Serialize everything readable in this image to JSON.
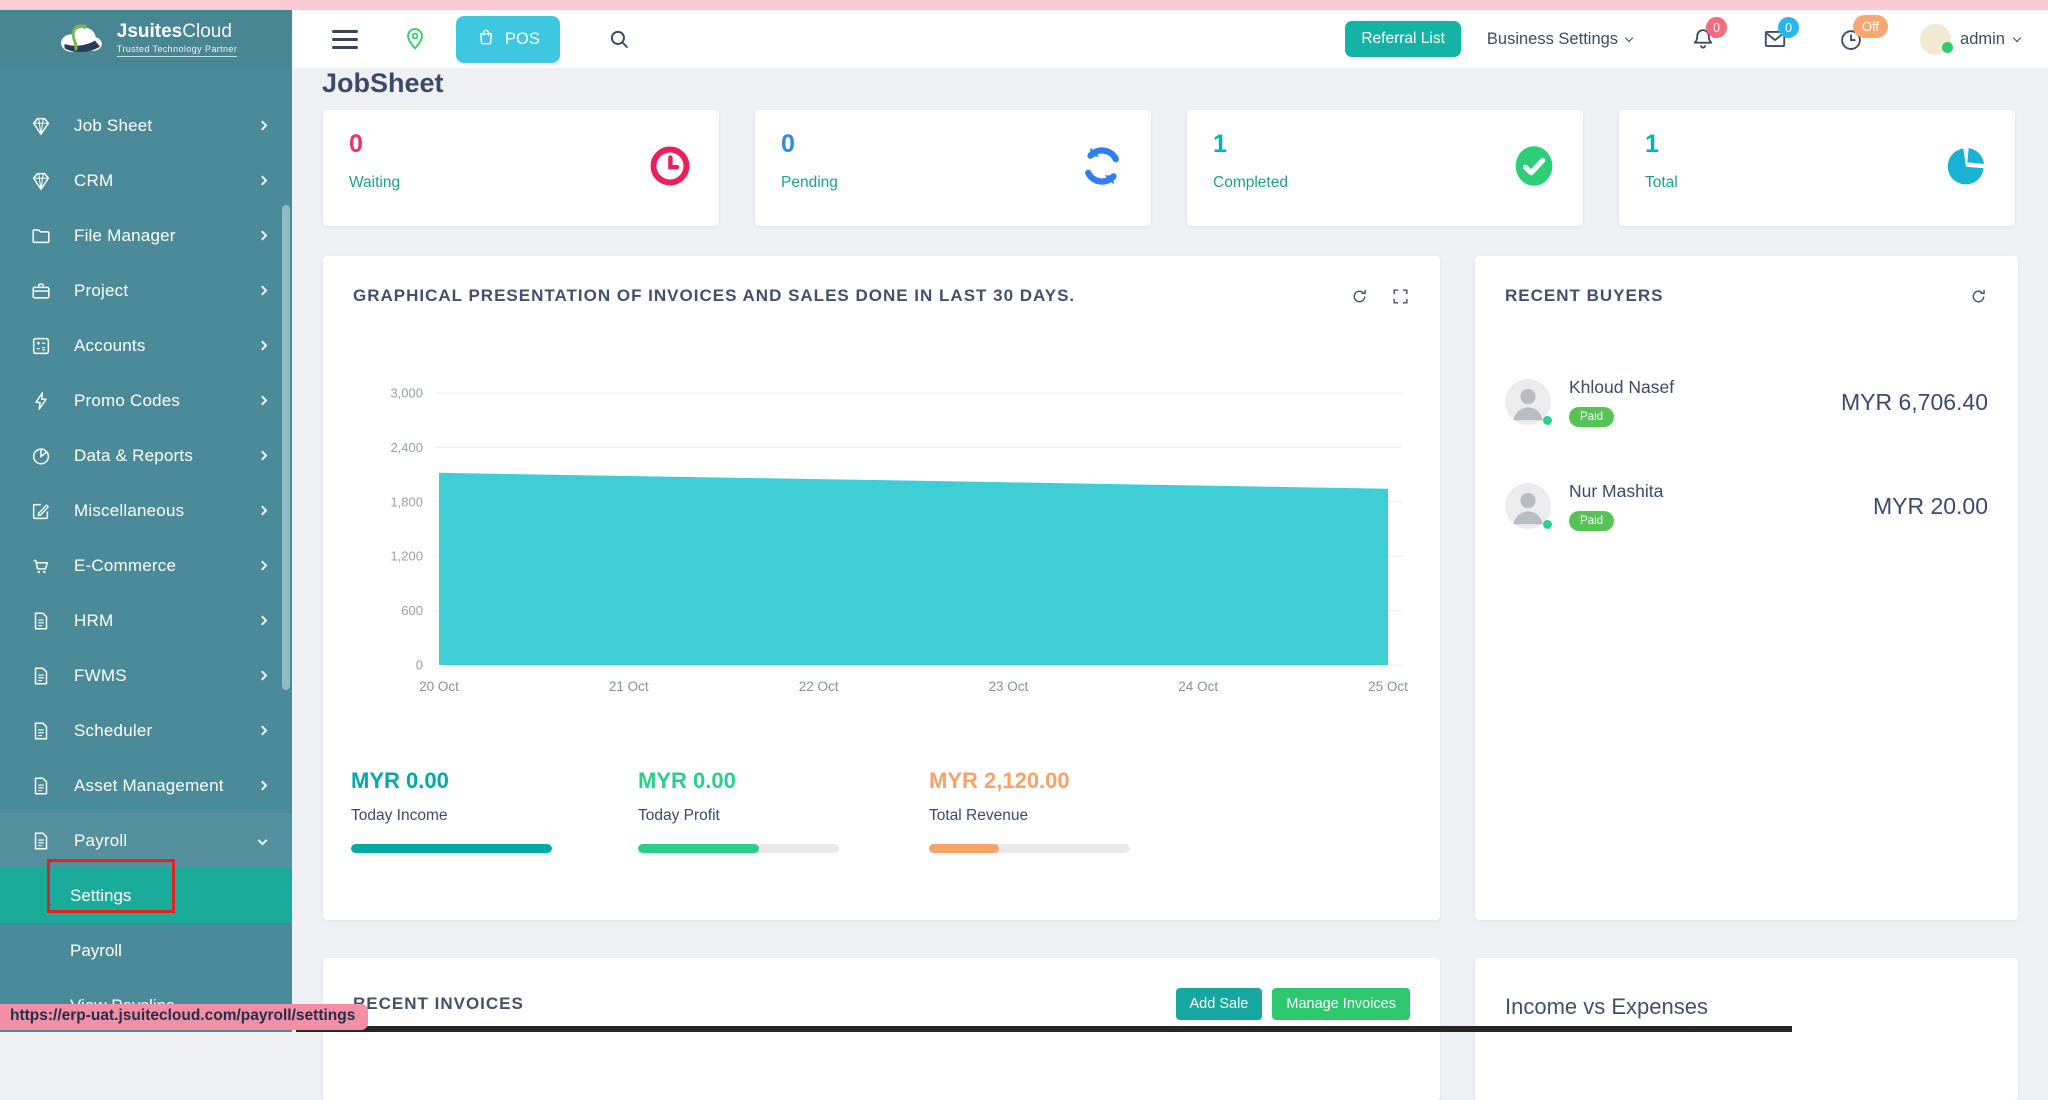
{
  "browser": {
    "status_url": "https://erp-uat.jsuitecloud.com/payroll/settings"
  },
  "brand": {
    "name_bold": "Jsuites",
    "name_light": "Cloud",
    "tagline": "Trusted Technology Partner"
  },
  "navbar": {
    "pos_label": "POS",
    "referral_button": "Referral List",
    "business_settings": "Business Settings",
    "notifications_count": "0",
    "messages_count": "0",
    "clock_status": "Off",
    "username": "admin"
  },
  "sidebar": {
    "items": [
      {
        "label": "Job Sheet",
        "icon": "diamond-icon"
      },
      {
        "label": "CRM",
        "icon": "diamond-icon"
      },
      {
        "label": "File Manager",
        "icon": "folder-icon"
      },
      {
        "label": "Project",
        "icon": "briefcase-icon"
      },
      {
        "label": "Accounts",
        "icon": "calculator-icon"
      },
      {
        "label": "Promo Codes",
        "icon": "bolt-icon"
      },
      {
        "label": "Data & Reports",
        "icon": "pie-icon"
      },
      {
        "label": "Miscellaneous",
        "icon": "edit-icon"
      },
      {
        "label": "E-Commerce",
        "icon": "cart-icon"
      },
      {
        "label": "HRM",
        "icon": "document-icon"
      },
      {
        "label": "FWMS",
        "icon": "document-icon"
      },
      {
        "label": "Scheduler",
        "icon": "document-icon"
      },
      {
        "label": "Asset Management",
        "icon": "document-icon"
      },
      {
        "label": "Payroll",
        "icon": "document-icon",
        "expanded": true
      }
    ],
    "payroll_submenu": [
      {
        "label": "Settings",
        "active": true,
        "annotated": true
      },
      {
        "label": "Payroll"
      },
      {
        "label": "View Payslips"
      }
    ]
  },
  "page": {
    "title": "JobSheet"
  },
  "stat_cards": [
    {
      "value": "0",
      "label": "Waiting",
      "value_color": "#e8365f",
      "icon": "clock-stat-icon",
      "icon_color": "#e8205c"
    },
    {
      "value": "0",
      "label": "Pending",
      "value_color": "#2f8be6",
      "icon": "refresh-stat-icon",
      "icon_color": "#2f80ed"
    },
    {
      "value": "1",
      "label": "Completed",
      "value_color": "#00b3b0",
      "icon": "check-circle-icon",
      "icon_color": "#2dce77"
    },
    {
      "value": "1",
      "label": "Total",
      "value_color": "#00b3b0",
      "icon": "pie-chart-icon",
      "icon_color": "#17b2d4"
    }
  ],
  "chart_card": {
    "title": "GRAPHICAL PRESENTATION OF INVOICES AND SALES DONE IN LAST 30 DAYS.",
    "summary": [
      {
        "value": "MYR 0.00",
        "label": "Today Income",
        "color": "#00a9a4",
        "progress": 100
      },
      {
        "value": "MYR 0.00",
        "label": "Today Profit",
        "color": "#2dce89",
        "progress": 60
      },
      {
        "value": "MYR 2,120.00",
        "label": "Total Revenue",
        "color": "#f5a26b",
        "progress": 35
      }
    ]
  },
  "chart_data": {
    "type": "area",
    "title": "GRAPHICAL PRESENTATION OF INVOICES AND SALES DONE IN LAST 30 DAYS.",
    "x": [
      "20 Oct",
      "21 Oct",
      "22 Oct",
      "23 Oct",
      "24 Oct",
      "25 Oct"
    ],
    "values": [
      2120,
      2085,
      2050,
      2015,
      1980,
      1945
    ],
    "xlabel": "",
    "ylabel": "",
    "ylim": [
      0,
      3000
    ],
    "yticks": [
      0,
      600,
      1200,
      1800,
      2400,
      3000
    ],
    "ytick_labels": [
      "0",
      "600",
      "1,200",
      "1,800",
      "2,400",
      "3,000"
    ],
    "fill_color": "#40ced6",
    "grid": true,
    "legend": false
  },
  "recent_buyers": {
    "title": "RECENT BUYERS",
    "buyers": [
      {
        "name": "Khloud Nasef",
        "status": "Paid",
        "amount": "MYR 6,706.40"
      },
      {
        "name": "Nur Mashita",
        "status": "Paid",
        "amount": "MYR 20.00"
      }
    ]
  },
  "recent_invoices": {
    "title": "RECENT INVOICES",
    "add_sale_label": "Add Sale",
    "manage_invoices_label": "Manage Invoices"
  },
  "income_expenses": {
    "title": "Income vs Expenses"
  },
  "colors": {
    "sidebar_bg": "#4b8b99",
    "active_submenu_bg": "#1bab9a",
    "annotation_red": "#e02424",
    "top_strip_pink": "#f9cbd4",
    "chart_fill": "#40ced6"
  }
}
